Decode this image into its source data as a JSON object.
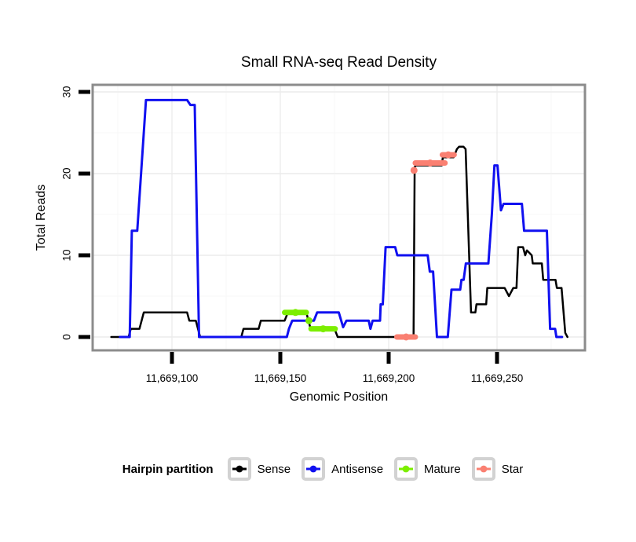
{
  "chart_data": {
    "type": "line",
    "title": "Small RNA-seq Read Density",
    "xlabel": "Genomic Position",
    "ylabel": "Total Reads",
    "xlim": [
      11669063,
      11669290
    ],
    "ylim": [
      0,
      30
    ],
    "grid": true,
    "x_ticks": [
      {
        "pos": 11669100,
        "label": "11,669,100"
      },
      {
        "pos": 11669150,
        "label": "11,669,150"
      },
      {
        "pos": 11669200,
        "label": "11,669,200"
      },
      {
        "pos": 11669250,
        "label": "11,669,250"
      }
    ],
    "x_minor": [
      11669075,
      11669125,
      11669175,
      11669225,
      11669275
    ],
    "y_ticks": [
      {
        "value": 0,
        "label": "0"
      },
      {
        "value": 10,
        "label": "10"
      },
      {
        "value": 20,
        "label": "20"
      },
      {
        "value": 30,
        "label": "30"
      }
    ],
    "y_minor": [
      5,
      15,
      25
    ],
    "series": [
      {
        "name": "Sense",
        "color": "#000000",
        "type": "line",
        "width": 2.5,
        "points": [
          [
            11669072,
            0
          ],
          [
            11669080,
            0
          ],
          [
            11669081,
            1
          ],
          [
            11669085,
            1
          ],
          [
            11669087,
            3
          ],
          [
            11669107,
            3
          ],
          [
            11669108,
            2
          ],
          [
            11669111,
            2
          ],
          [
            11669113,
            0
          ],
          [
            11669132,
            0
          ],
          [
            11669133,
            1
          ],
          [
            11669140,
            1
          ],
          [
            11669141,
            2
          ],
          [
            11669152,
            2
          ],
          [
            11669153.5,
            3
          ],
          [
            11669162,
            3
          ],
          [
            11669164,
            1
          ],
          [
            11669175,
            1
          ],
          [
            11669176.5,
            0
          ],
          [
            11669211.5,
            0
          ],
          [
            11669212,
            20.8
          ],
          [
            11669212.5,
            21
          ],
          [
            11669224.5,
            21
          ],
          [
            11669225,
            22
          ],
          [
            11669230,
            22
          ],
          [
            11669231.5,
            23
          ],
          [
            11669232.5,
            23.3
          ],
          [
            11669234.5,
            23.3
          ],
          [
            11669235.5,
            23
          ],
          [
            11669238,
            3
          ],
          [
            11669240,
            3
          ],
          [
            11669240.5,
            4
          ],
          [
            11669245,
            4
          ],
          [
            11669245.5,
            6
          ],
          [
            11669253.5,
            6
          ],
          [
            11669255.5,
            5
          ],
          [
            11669257.5,
            6
          ],
          [
            11669259,
            6
          ],
          [
            11669259.8,
            11
          ],
          [
            11669262,
            11
          ],
          [
            11669263,
            10
          ],
          [
            11669263.8,
            10.6
          ],
          [
            11669266,
            10
          ],
          [
            11669266.5,
            9
          ],
          [
            11669270.7,
            9
          ],
          [
            11669271.3,
            7
          ],
          [
            11669277,
            7
          ],
          [
            11669277.6,
            6
          ],
          [
            11669279.8,
            6
          ],
          [
            11669281.5,
            0.5
          ],
          [
            11669282.5,
            0
          ]
        ]
      },
      {
        "name": "Antisense",
        "color": "#1010F0",
        "type": "line",
        "width": 3,
        "points": [
          [
            11669076,
            0
          ],
          [
            11669080.5,
            0
          ],
          [
            11669081.5,
            13
          ],
          [
            11669084,
            13
          ],
          [
            11669088,
            29
          ],
          [
            11669107,
            29
          ],
          [
            11669108.5,
            28.4
          ],
          [
            11669110.5,
            28.4
          ],
          [
            11669112.5,
            0
          ],
          [
            11669153,
            0
          ],
          [
            11669154,
            1
          ],
          [
            11669155.5,
            2
          ],
          [
            11669165.5,
            2
          ],
          [
            11669167,
            3
          ],
          [
            11669177,
            3
          ],
          [
            11669179,
            1.2
          ],
          [
            11669180.5,
            2
          ],
          [
            11669190.8,
            2
          ],
          [
            11669191.6,
            1
          ],
          [
            11669192.6,
            2
          ],
          [
            11669196,
            2
          ],
          [
            11669196.3,
            4
          ],
          [
            11669197.3,
            4
          ],
          [
            11669198.6,
            11
          ],
          [
            11669203,
            11
          ],
          [
            11669204,
            10
          ],
          [
            11669218,
            10
          ],
          [
            11669219,
            8
          ],
          [
            11669220.5,
            8
          ],
          [
            11669222.3,
            0
          ],
          [
            11669227.3,
            0
          ],
          [
            11669229,
            5.8
          ],
          [
            11669233,
            5.8
          ],
          [
            11669233.6,
            7
          ],
          [
            11669234.6,
            7
          ],
          [
            11669235.6,
            9
          ],
          [
            11669246,
            9
          ],
          [
            11669247.6,
            15
          ],
          [
            11669248.8,
            21
          ],
          [
            11669250.2,
            21
          ],
          [
            11669251.8,
            15.5
          ],
          [
            11669253,
            16.3
          ],
          [
            11669261.5,
            16.3
          ],
          [
            11669262.5,
            13
          ],
          [
            11669273,
            13
          ],
          [
            11669274.5,
            1
          ],
          [
            11669276.8,
            1
          ],
          [
            11669277.4,
            0
          ],
          [
            11669280,
            0
          ]
        ]
      },
      {
        "name": "Mature",
        "color": "#7CEE00",
        "type": "segments",
        "width": 7,
        "segments": [
          {
            "from": 11669152,
            "to": 11669162,
            "y": 3
          },
          {
            "from": 11669163.2,
            "to": 11669163.2,
            "y": 2
          },
          {
            "from": 11669164.2,
            "to": 11669175.3,
            "y": 1
          }
        ]
      },
      {
        "name": "Star",
        "color": "#FA8072",
        "type": "segments",
        "width": 7,
        "segments": [
          {
            "from": 11669203.8,
            "to": 11669212.3,
            "y": 0
          },
          {
            "from": 11669211.7,
            "to": 11669211.7,
            "y": 20.4
          },
          {
            "from": 11669212.3,
            "to": 11669226,
            "y": 21.3
          },
          {
            "from": 11669224.8,
            "to": 11669230.2,
            "y": 22.3
          }
        ]
      }
    ]
  },
  "legend": {
    "title": "Hairpin partition",
    "position": "bottom",
    "items": [
      {
        "label": "Sense",
        "color": "#000000"
      },
      {
        "label": "Antisense",
        "color": "#1010F0"
      },
      {
        "label": "Mature",
        "color": "#7CEE00"
      },
      {
        "label": "Star",
        "color": "#FA8072"
      }
    ]
  },
  "colors": {
    "panel_border": "#8C8C8C",
    "grid_major": "#ECECEC",
    "grid_minor": "#F7F7F7",
    "tick": "#000000",
    "legend_key_border": "#D2D2D2"
  }
}
